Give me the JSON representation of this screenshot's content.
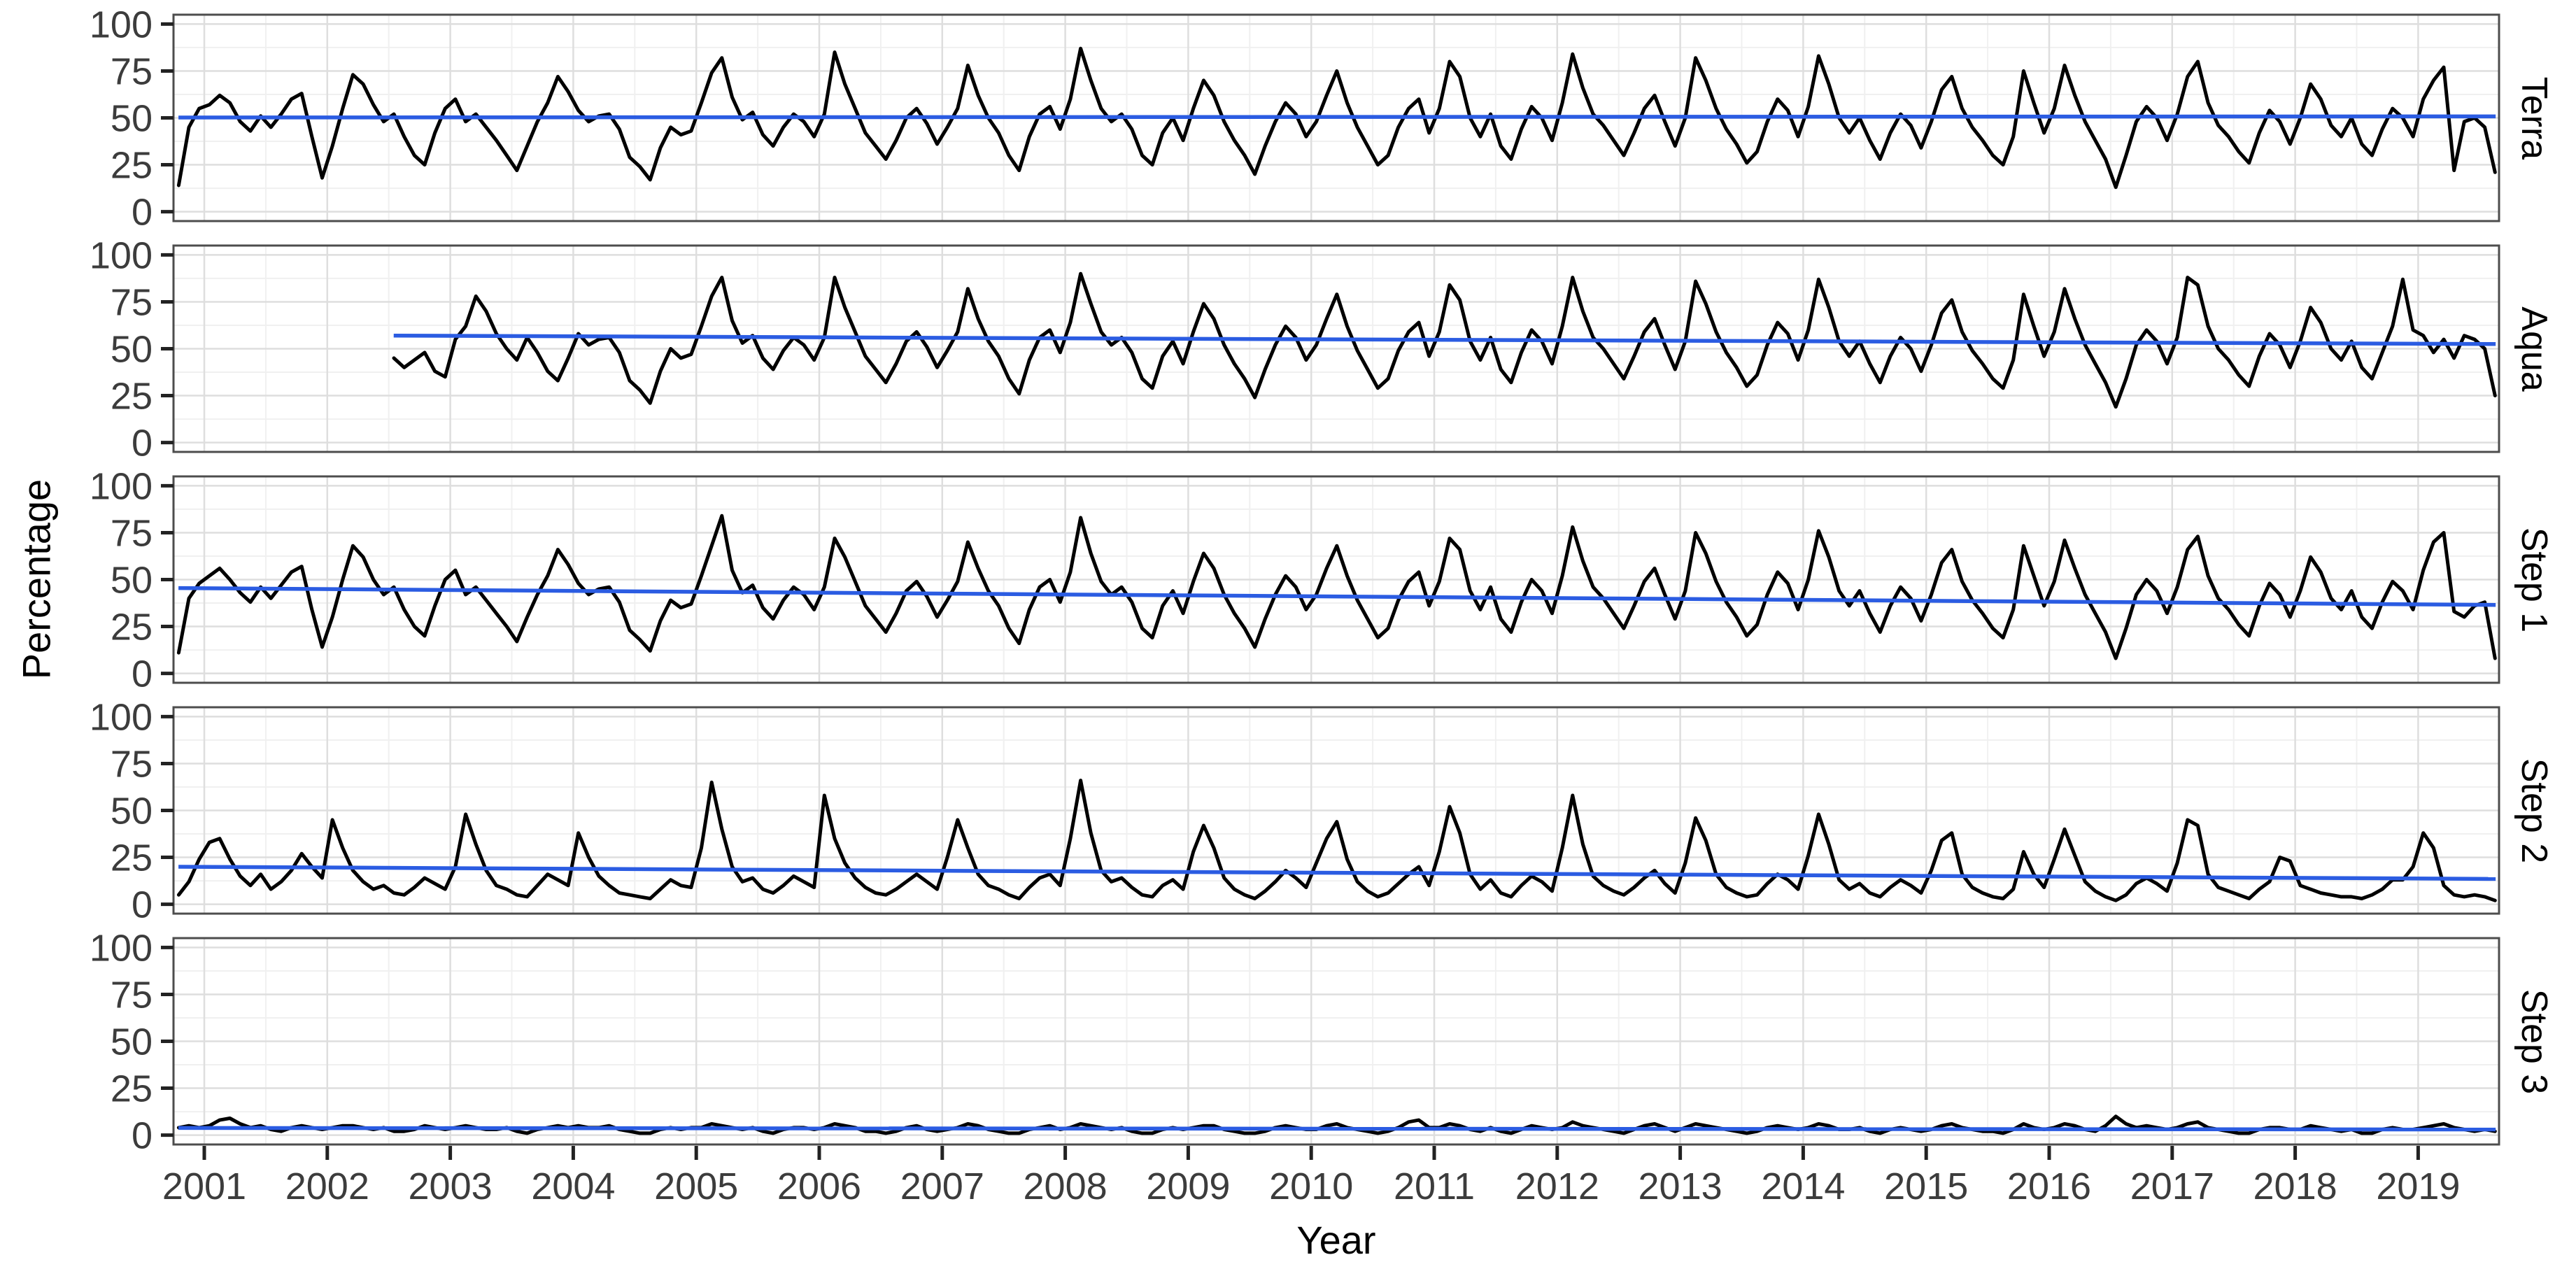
{
  "chart_data": {
    "type": "line",
    "title": "",
    "xlabel": "Year",
    "ylabel": "Percentage",
    "x_range": [
      2000.75,
      2019.65
    ],
    "ylim": [
      0,
      100
    ],
    "x_ticks": [
      2001,
      2002,
      2003,
      2004,
      2005,
      2006,
      2007,
      2008,
      2009,
      2010,
      2011,
      2012,
      2013,
      2014,
      2015,
      2016,
      2017,
      2018,
      2019
    ],
    "x_tick_labels": [
      "2001",
      "2002",
      "2003",
      "2004",
      "2005",
      "2006",
      "2007",
      "2008",
      "2009",
      "2010",
      "2011",
      "2012",
      "2013",
      "2014",
      "2015",
      "2016",
      "2017",
      "2018",
      "2019"
    ],
    "y_ticks": [
      0,
      25,
      50,
      75,
      100
    ],
    "y_tick_labels": [
      "0",
      "25",
      "50",
      "75",
      "100"
    ],
    "grid": "major-minor",
    "legend": "none",
    "facet_layout": "rows",
    "colors": {
      "series": "#000000",
      "trend": "#2B5CE2",
      "grid_major": "#DEDEDE",
      "grid_minor": "#F0F0F0",
      "panel_border": "#4D4D4D",
      "tick": "#222222",
      "tick_label": "#3C3C3C",
      "background": "#FFFFFF"
    },
    "facets": [
      {
        "label": "Terra",
        "start_year": 2000,
        "start_month": 10,
        "monthly_values": [
          14,
          45,
          55,
          57,
          62,
          58,
          48,
          43,
          51,
          45,
          52,
          60,
          63,
          40,
          18,
          35,
          55,
          73,
          68,
          57,
          48,
          52,
          40,
          30,
          25,
          42,
          55,
          60,
          48,
          52,
          45,
          38,
          30,
          22,
          35,
          48,
          58,
          72,
          64,
          54,
          48,
          51,
          52,
          44,
          29,
          24,
          17,
          34,
          45,
          41,
          43,
          58,
          74,
          82,
          61,
          49,
          53,
          41,
          35,
          45,
          52,
          48,
          40,
          52,
          85,
          68,
          55,
          42,
          35,
          28,
          38,
          50,
          55,
          47,
          36,
          45,
          55,
          78,
          62,
          50,
          42,
          30,
          22,
          40,
          52,
          56,
          44,
          60,
          87,
          70,
          55,
          48,
          52,
          44,
          30,
          25,
          42,
          50,
          38,
          55,
          70,
          62,
          48,
          38,
          30,
          20,
          35,
          48,
          58,
          52,
          40,
          48,
          62,
          75,
          58,
          45,
          35,
          25,
          30,
          45,
          55,
          60,
          42,
          55,
          80,
          72,
          50,
          40,
          52,
          35,
          28,
          44,
          56,
          50,
          38,
          58,
          84,
          66,
          52,
          46,
          38,
          30,
          42,
          55,
          62,
          48,
          35,
          50,
          82,
          70,
          55,
          44,
          36,
          26,
          32,
          48,
          60,
          54,
          40,
          56,
          83,
          68,
          50,
          42,
          50,
          38,
          28,
          42,
          52,
          46,
          34,
          48,
          65,
          72,
          55,
          45,
          38,
          30,
          25,
          40,
          75,
          58,
          42,
          55,
          78,
          62,
          48,
          38,
          28,
          13,
          30,
          48,
          56,
          50,
          38,
          52,
          72,
          80,
          58,
          46,
          40,
          32,
          26,
          42,
          54,
          48,
          36,
          50,
          68,
          60,
          46,
          40,
          50,
          36,
          30,
          44,
          55,
          50,
          40,
          60,
          70,
          77,
          22,
          48,
          50,
          45,
          21
        ],
        "trend": {
          "x": [
            2000.79,
            2019.63
          ],
          "y": [
            50.2,
            50.8
          ]
        }
      },
      {
        "label": "Aqua",
        "start_year": 2002,
        "start_month": 7,
        "monthly_values": [
          45,
          40,
          44,
          48,
          38,
          35,
          55,
          62,
          78,
          70,
          58,
          50,
          44,
          56,
          48,
          38,
          33,
          45,
          58,
          52,
          55,
          56,
          48,
          33,
          28,
          21,
          38,
          50,
          45,
          47,
          62,
          78,
          88,
          65,
          53,
          57,
          45,
          39,
          49,
          56,
          52,
          44,
          56,
          88,
          72,
          59,
          46,
          39,
          32,
          42,
          54,
          59,
          51,
          40,
          49,
          59,
          82,
          66,
          54,
          46,
          34,
          26,
          44,
          56,
          60,
          48,
          64,
          90,
          74,
          59,
          52,
          56,
          48,
          34,
          29,
          46,
          54,
          42,
          59,
          74,
          66,
          52,
          42,
          34,
          24,
          39,
          52,
          62,
          56,
          44,
          52,
          66,
          79,
          62,
          49,
          39,
          29,
          34,
          49,
          59,
          64,
          46,
          59,
          84,
          76,
          54,
          44,
          56,
          39,
          32,
          48,
          60,
          54,
          42,
          62,
          88,
          70,
          56,
          50,
          42,
          34,
          46,
          59,
          66,
          52,
          39,
          54,
          86,
          74,
          59,
          48,
          40,
          30,
          36,
          52,
          64,
          58,
          44,
          60,
          87,
          72,
          54,
          46,
          54,
          42,
          32,
          46,
          56,
          50,
          38,
          52,
          69,
          76,
          59,
          49,
          42,
          34,
          29,
          44,
          79,
          62,
          46,
          59,
          82,
          66,
          52,
          42,
          32,
          19,
          34,
          52,
          60,
          54,
          42,
          56,
          88,
          84,
          62,
          50,
          44,
          36,
          30,
          46,
          58,
          52,
          40,
          54,
          72,
          64,
          50,
          44,
          54,
          40,
          34,
          48,
          62,
          87,
          60,
          57,
          48,
          55,
          45,
          57,
          55,
          50,
          25
        ],
        "trend": {
          "x": [
            2002.54,
            2019.63
          ],
          "y": [
            57.0,
            52.5
          ]
        }
      },
      {
        "label": "Step 1",
        "start_year": 2000,
        "start_month": 10,
        "monthly_values": [
          11,
          40,
          48,
          52,
          56,
          50,
          43,
          38,
          46,
          40,
          47,
          54,
          57,
          34,
          14,
          30,
          50,
          68,
          62,
          50,
          42,
          46,
          34,
          25,
          20,
          36,
          50,
          55,
          42,
          46,
          39,
          32,
          25,
          17,
          30,
          42,
          52,
          66,
          58,
          48,
          42,
          45,
          46,
          38,
          23,
          18,
          12,
          28,
          39,
          35,
          37,
          52,
          68,
          84,
          55,
          43,
          47,
          35,
          29,
          39,
          46,
          42,
          34,
          46,
          72,
          62,
          49,
          36,
          29,
          22,
          32,
          44,
          49,
          41,
          30,
          39,
          49,
          70,
          56,
          44,
          36,
          24,
          16,
          34,
          46,
          50,
          38,
          54,
          83,
          64,
          49,
          42,
          46,
          38,
          24,
          19,
          36,
          44,
          32,
          49,
          64,
          56,
          42,
          32,
          24,
          14,
          29,
          42,
          52,
          46,
          34,
          42,
          56,
          68,
          52,
          39,
          29,
          19,
          24,
          39,
          49,
          54,
          36,
          49,
          72,
          66,
          44,
          34,
          46,
          29,
          22,
          38,
          50,
          44,
          32,
          52,
          78,
          60,
          46,
          40,
          32,
          24,
          36,
          49,
          56,
          42,
          29,
          44,
          75,
          64,
          49,
          38,
          30,
          20,
          26,
          42,
          54,
          48,
          34,
          50,
          76,
          62,
          44,
          36,
          44,
          32,
          22,
          36,
          46,
          40,
          28,
          42,
          59,
          66,
          49,
          39,
          32,
          24,
          19,
          34,
          68,
          52,
          36,
          49,
          71,
          56,
          42,
          32,
          22,
          8,
          24,
          42,
          50,
          44,
          32,
          46,
          66,
          73,
          52,
          40,
          34,
          26,
          20,
          36,
          48,
          42,
          30,
          44,
          62,
          54,
          40,
          34,
          44,
          30,
          24,
          38,
          49,
          44,
          34,
          55,
          70,
          75,
          33,
          30,
          36,
          38,
          8
        ],
        "trend": {
          "x": [
            2000.79,
            2019.63
          ],
          "y": [
            45.5,
            36.5
          ]
        }
      },
      {
        "label": "Step 2",
        "start_year": 2000,
        "start_month": 10,
        "monthly_values": [
          5,
          12,
          24,
          33,
          35,
          24,
          15,
          10,
          16,
          8,
          12,
          18,
          27,
          20,
          14,
          45,
          30,
          18,
          12,
          8,
          10,
          6,
          5,
          9,
          14,
          11,
          8,
          20,
          48,
          32,
          18,
          10,
          8,
          5,
          4,
          10,
          16,
          13,
          10,
          38,
          25,
          15,
          10,
          6,
          5,
          4,
          3,
          8,
          13,
          10,
          9,
          30,
          65,
          40,
          20,
          12,
          14,
          8,
          6,
          10,
          15,
          12,
          9,
          58,
          35,
          22,
          14,
          9,
          6,
          5,
          8,
          12,
          16,
          12,
          8,
          25,
          45,
          30,
          16,
          10,
          8,
          5,
          3,
          9,
          14,
          16,
          10,
          35,
          66,
          38,
          18,
          12,
          14,
          9,
          5,
          4,
          10,
          13,
          8,
          28,
          42,
          30,
          14,
          8,
          5,
          3,
          7,
          12,
          18,
          14,
          9,
          22,
          35,
          44,
          24,
          12,
          7,
          4,
          6,
          11,
          16,
          20,
          10,
          28,
          52,
          38,
          16,
          8,
          13,
          6,
          4,
          10,
          15,
          12,
          7,
          30,
          58,
          32,
          15,
          10,
          7,
          5,
          9,
          14,
          18,
          11,
          6,
          22,
          46,
          34,
          16,
          9,
          6,
          4,
          5,
          11,
          16,
          13,
          8,
          26,
          48,
          32,
          13,
          8,
          11,
          6,
          4,
          9,
          13,
          10,
          6,
          18,
          34,
          38,
          16,
          9,
          6,
          4,
          3,
          8,
          28,
          16,
          9,
          24,
          40,
          26,
          12,
          7,
          4,
          2,
          5,
          11,
          14,
          11,
          7,
          22,
          45,
          42,
          16,
          9,
          7,
          5,
          3,
          8,
          12,
          25,
          23,
          10,
          8,
          6,
          5,
          4,
          4,
          3,
          5,
          8,
          13,
          13,
          20,
          38,
          30,
          10,
          5,
          4,
          5,
          4,
          2
        ],
        "trend": {
          "x": [
            2000.79,
            2019.63
          ],
          "y": [
            20.0,
            13.5
          ]
        }
      },
      {
        "label": "Step 3",
        "start_year": 2000,
        "start_month": 10,
        "monthly_values": [
          4,
          5,
          4,
          5,
          8,
          9,
          6,
          4,
          5,
          3,
          2,
          4,
          5,
          4,
          3,
          4,
          5,
          5,
          4,
          3,
          4,
          2,
          2,
          3,
          5,
          4,
          3,
          4,
          5,
          4,
          3,
          3,
          4,
          2,
          1,
          3,
          4,
          5,
          4,
          5,
          4,
          4,
          5,
          3,
          2,
          1,
          1,
          3,
          4,
          3,
          4,
          4,
          6,
          5,
          4,
          3,
          4,
          2,
          1,
          3,
          4,
          4,
          3,
          4,
          6,
          5,
          4,
          2,
          2,
          1,
          2,
          4,
          5,
          3,
          2,
          3,
          4,
          6,
          5,
          3,
          2,
          1,
          1,
          3,
          4,
          5,
          3,
          4,
          6,
          5,
          4,
          3,
          4,
          2,
          1,
          1,
          3,
          4,
          3,
          4,
          5,
          5,
          3,
          2,
          1,
          1,
          2,
          4,
          5,
          4,
          3,
          3,
          5,
          6,
          4,
          3,
          2,
          1,
          2,
          4,
          7,
          8,
          4,
          4,
          6,
          5,
          3,
          2,
          4,
          2,
          1,
          3,
          5,
          4,
          3,
          4,
          7,
          5,
          4,
          3,
          2,
          1,
          3,
          5,
          6,
          4,
          2,
          4,
          6,
          5,
          4,
          3,
          2,
          1,
          2,
          4,
          5,
          4,
          3,
          4,
          6,
          5,
          3,
          3,
          4,
          2,
          1,
          3,
          4,
          3,
          2,
          3,
          5,
          6,
          4,
          3,
          2,
          2,
          1,
          3,
          6,
          4,
          3,
          4,
          6,
          5,
          3,
          2,
          5,
          10,
          6,
          4,
          5,
          4,
          3,
          4,
          6,
          7,
          4,
          3,
          2,
          1,
          1,
          3,
          4,
          4,
          3,
          3,
          5,
          4,
          3,
          2,
          3,
          1,
          1,
          3,
          4,
          3,
          3,
          4,
          5,
          6,
          4,
          3,
          2,
          3,
          2
        ],
        "trend": {
          "x": [
            2000.79,
            2019.63
          ],
          "y": [
            3.8,
            3.0
          ]
        }
      }
    ]
  }
}
